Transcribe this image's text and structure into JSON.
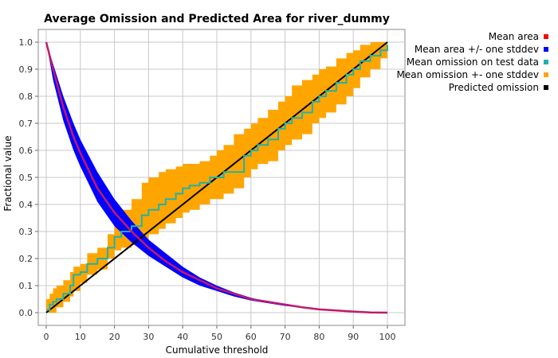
{
  "chart_data": {
    "type": "line",
    "title": "Average Omission and Predicted Area for river_dummy",
    "xlabel": "Cumulative threshold",
    "ylabel": "Fractional value",
    "xlim": [
      0,
      100
    ],
    "ylim": [
      0,
      1
    ],
    "xticks": [
      0,
      10,
      20,
      30,
      40,
      50,
      60,
      70,
      80,
      90,
      100
    ],
    "yticks": [
      0.0,
      0.1,
      0.2,
      0.3,
      0.4,
      0.5,
      0.6,
      0.7,
      0.8,
      0.9,
      1.0
    ],
    "ytick_labels": [
      "0.0",
      "0.1",
      "0.2",
      "0.3",
      "0.4",
      "0.5",
      "0.6",
      "0.7",
      "0.8",
      "0.9",
      "1.0"
    ],
    "grid": true,
    "legend_position": "right",
    "series": [
      {
        "name": "Mean area",
        "color": "#ff0000",
        "x": [
          0,
          2,
          5,
          8,
          10,
          15,
          20,
          25,
          30,
          35,
          40,
          45,
          50,
          55,
          60,
          65,
          70,
          75,
          80,
          85,
          90,
          95,
          100
        ],
        "y": [
          1.0,
          0.9,
          0.76,
          0.65,
          0.59,
          0.46,
          0.37,
          0.3,
          0.24,
          0.19,
          0.15,
          0.12,
          0.09,
          0.07,
          0.05,
          0.04,
          0.03,
          0.02,
          0.012,
          0.008,
          0.004,
          0.001,
          0.0
        ]
      },
      {
        "name": "Mean area +/- one stddev",
        "color": "#0000ff",
        "x": [
          0,
          2,
          5,
          8,
          10,
          15,
          20,
          25,
          30,
          35,
          40,
          45,
          50,
          55,
          60,
          65,
          70,
          75,
          80,
          85,
          90,
          95,
          100
        ],
        "upper": [
          1.0,
          0.92,
          0.8,
          0.7,
          0.64,
          0.52,
          0.42,
          0.34,
          0.27,
          0.22,
          0.17,
          0.13,
          0.1,
          0.075,
          0.055,
          0.04,
          0.03,
          0.02,
          0.013,
          0.008,
          0.004,
          0.001,
          0.0
        ],
        "lower": [
          1.0,
          0.86,
          0.71,
          0.6,
          0.54,
          0.41,
          0.32,
          0.26,
          0.21,
          0.17,
          0.13,
          0.1,
          0.08,
          0.06,
          0.045,
          0.035,
          0.025,
          0.018,
          0.011,
          0.007,
          0.003,
          0.001,
          0.0
        ]
      },
      {
        "name": "Mean omission on test data",
        "color": "#20b2aa",
        "x": [
          0,
          1,
          2,
          3,
          5,
          7,
          8,
          10,
          12,
          15,
          18,
          20,
          22,
          25,
          28,
          30,
          33,
          35,
          38,
          40,
          42,
          45,
          48,
          50,
          52,
          55,
          58,
          60,
          62,
          65,
          68,
          70,
          72,
          75,
          78,
          80,
          82,
          85,
          88,
          90,
          92,
          95,
          98,
          100
        ],
        "y": [
          0.01,
          0.03,
          0.04,
          0.05,
          0.07,
          0.1,
          0.14,
          0.15,
          0.18,
          0.2,
          0.24,
          0.28,
          0.3,
          0.32,
          0.36,
          0.38,
          0.4,
          0.42,
          0.44,
          0.46,
          0.47,
          0.48,
          0.5,
          0.5,
          0.52,
          0.52,
          0.58,
          0.6,
          0.62,
          0.64,
          0.68,
          0.7,
          0.72,
          0.74,
          0.78,
          0.8,
          0.82,
          0.85,
          0.88,
          0.9,
          0.93,
          0.95,
          0.97,
          0.99
        ]
      },
      {
        "name": "Mean omission +- one stddev",
        "color": "#ffa500",
        "x": [
          0,
          1,
          2,
          3,
          5,
          7,
          8,
          10,
          12,
          15,
          18,
          20,
          22,
          25,
          28,
          30,
          33,
          35,
          38,
          40,
          42,
          45,
          48,
          50,
          52,
          55,
          58,
          60,
          62,
          65,
          68,
          70,
          72,
          75,
          78,
          80,
          82,
          85,
          88,
          90,
          92,
          95,
          98,
          100
        ],
        "upper": [
          0.05,
          0.07,
          0.09,
          0.1,
          0.12,
          0.15,
          0.17,
          0.18,
          0.22,
          0.24,
          0.29,
          0.34,
          0.38,
          0.42,
          0.48,
          0.5,
          0.52,
          0.53,
          0.54,
          0.55,
          0.55,
          0.56,
          0.58,
          0.6,
          0.62,
          0.66,
          0.68,
          0.7,
          0.72,
          0.75,
          0.78,
          0.8,
          0.84,
          0.86,
          0.88,
          0.9,
          0.91,
          0.94,
          0.96,
          0.97,
          0.99,
          1.0,
          1.0,
          1.0
        ],
        "lower": [
          0.0,
          0.0,
          0.0,
          0.02,
          0.04,
          0.06,
          0.08,
          0.11,
          0.14,
          0.16,
          0.2,
          0.23,
          0.24,
          0.25,
          0.27,
          0.29,
          0.31,
          0.33,
          0.35,
          0.37,
          0.38,
          0.4,
          0.42,
          0.42,
          0.44,
          0.46,
          0.5,
          0.53,
          0.55,
          0.56,
          0.6,
          0.62,
          0.64,
          0.66,
          0.7,
          0.72,
          0.74,
          0.77,
          0.8,
          0.83,
          0.87,
          0.9,
          0.94,
          0.97
        ]
      },
      {
        "name": "Predicted omission",
        "color": "#000000",
        "x": [
          0,
          100
        ],
        "y": [
          0,
          1
        ]
      }
    ]
  }
}
